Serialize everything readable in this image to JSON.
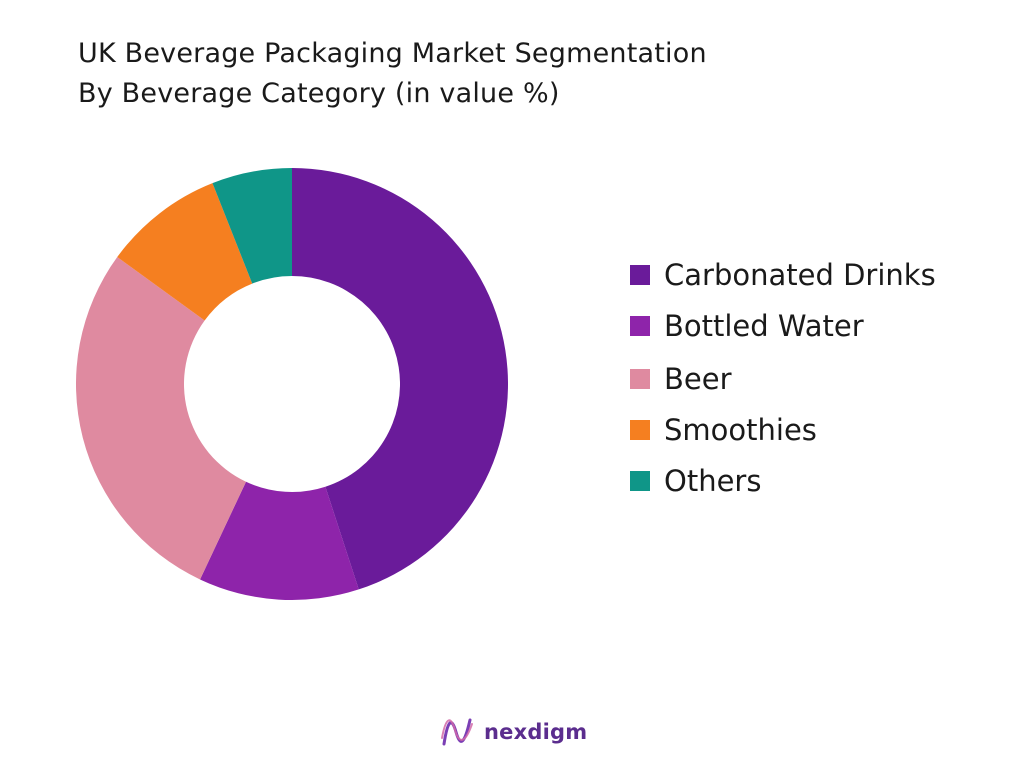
{
  "title_line1": "UK Beverage Packaging Market Segmentation",
  "title_line2": "By Beverage Category (in value %)",
  "brand_name": "nexdigm",
  "brand_color": "#5b2d8e",
  "chart_data": {
    "type": "pie",
    "donut": true,
    "categories": [
      "Carbonated Drinks",
      "Bottled Water",
      "Beer",
      "Smoothies",
      "Others"
    ],
    "values": [
      45,
      12,
      28,
      9,
      6
    ],
    "colors": [
      "#6a1b9a",
      "#8e24aa",
      "#df8aa0",
      "#f57f20",
      "#0f9688"
    ],
    "legend_position": "right"
  }
}
